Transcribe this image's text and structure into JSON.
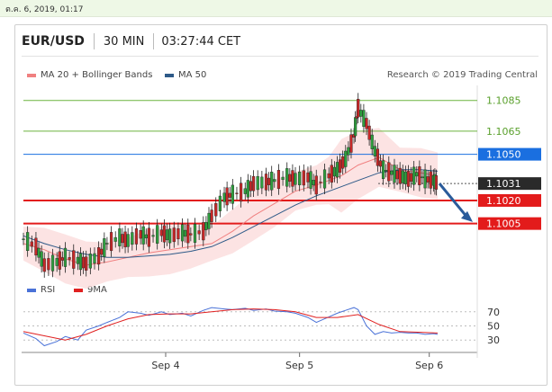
{
  "timestamp": "ต.ค. 6, 2019, 01:17",
  "header": {
    "symbol": "EUR/USD",
    "timeframe": "30 MIN",
    "time": "03:27:44 CET"
  },
  "legend": {
    "ma20": {
      "label": "MA 20 + Bollinger Bands",
      "color": "#f08080"
    },
    "ma50": {
      "label": "MA 50",
      "color": "#2e5a88"
    }
  },
  "research": "Research © 2019 Trading Central",
  "rsi_legend": {
    "rsi": {
      "label": "RSI",
      "color": "#4a72d8"
    },
    "ma9": {
      "label": "9MA",
      "color": "#e02020"
    }
  },
  "chart_data": [
    {
      "type": "line",
      "title": "",
      "x_ticks": [
        "Sep 4",
        "Sep 5",
        "Sep 6"
      ],
      "ylim": [
        1.0975,
        1.1093
      ],
      "levels": [
        {
          "value": 1.1085,
          "label": "1.1085",
          "kind": "resistance",
          "color": "#6cb33f"
        },
        {
          "value": 1.1065,
          "label": "1.1065",
          "kind": "resistance",
          "color": "#6cb33f"
        },
        {
          "value": 1.105,
          "label": "1.1050",
          "kind": "pivot",
          "color": "#1a6fe0"
        },
        {
          "value": 1.1031,
          "label": "1.1031",
          "kind": "last",
          "color": "#2a2a2a"
        },
        {
          "value": 1.102,
          "label": "1.1020",
          "kind": "support",
          "color": "#e31b1b"
        },
        {
          "value": 1.1005,
          "label": "1.1005",
          "kind": "support",
          "color": "#e31b1b"
        }
      ],
      "series": [
        {
          "name": "MA 20 + Bollinger Bands",
          "x": [
            0,
            5,
            10,
            15,
            20,
            25,
            30,
            35,
            40,
            45,
            50,
            55,
            60,
            65,
            70,
            73,
            76,
            80,
            85,
            90,
            95,
            99
          ],
          "values": [
            1.0992,
            1.0988,
            1.0982,
            1.0978,
            1.098,
            1.0983,
            1.0986,
            1.0988,
            1.099,
            1.0992,
            1.1,
            1.101,
            1.1018,
            1.1026,
            1.103,
            1.1033,
            1.1036,
            1.1043,
            1.1048,
            1.104,
            1.1038,
            1.1036
          ]
        },
        {
          "name": "MA 50",
          "x": [
            0,
            5,
            10,
            15,
            20,
            25,
            30,
            35,
            40,
            45,
            50,
            55,
            60,
            65,
            70,
            75,
            80,
            85,
            90,
            95,
            99
          ],
          "values": [
            1.0997,
            1.0992,
            1.0988,
            1.0985,
            1.0983,
            1.0983,
            1.0984,
            1.0985,
            1.0987,
            1.099,
            1.0996,
            1.1003,
            1.101,
            1.1017,
            1.1023,
            1.1028,
            1.1033,
            1.1038,
            1.104,
            1.104,
            1.1039
          ]
        },
        {
          "name": "EUR/USD",
          "x": [
            0,
            3,
            5,
            8,
            10,
            13,
            15,
            18,
            20,
            23,
            25,
            28,
            30,
            33,
            35,
            38,
            40,
            43,
            45,
            48,
            50,
            53,
            55,
            58,
            60,
            63,
            65,
            68,
            70,
            73,
            75,
            77,
            79,
            80,
            82,
            84,
            86,
            88,
            90,
            92,
            94,
            96,
            98,
            99
          ],
          "values": [
            1.0995,
            1.099,
            1.0978,
            1.098,
            1.0983,
            1.0981,
            1.0979,
            1.0984,
            1.0992,
            1.0996,
            1.0994,
            1.0998,
            1.0996,
            1.0999,
            1.0997,
            1.0999,
            1.0998,
            1.1,
            1.101,
            1.1022,
            1.1024,
            1.1026,
            1.1031,
            1.1032,
            1.1033,
            1.1035,
            1.1034,
            1.1035,
            1.103,
            1.1036,
            1.104,
            1.1047,
            1.1062,
            1.108,
            1.107,
            1.1052,
            1.104,
            1.1038,
            1.1036,
            1.1034,
            1.1037,
            1.1034,
            1.1033,
            1.1031
          ]
        }
      ]
    },
    {
      "type": "line",
      "title": "",
      "x_ticks": [
        "Sep 4",
        "Sep 5",
        "Sep 6"
      ],
      "ylim": [
        15,
        85
      ],
      "y_ticks": [
        70,
        50,
        30
      ],
      "series": [
        {
          "name": "RSI",
          "x": [
            0,
            3,
            5,
            8,
            10,
            13,
            15,
            18,
            20,
            23,
            25,
            28,
            30,
            33,
            35,
            38,
            40,
            43,
            45,
            48,
            50,
            53,
            55,
            58,
            60,
            63,
            65,
            68,
            70,
            72,
            75,
            77,
            79,
            80,
            82,
            84,
            86,
            88,
            90,
            92,
            94,
            96,
            98,
            99
          ],
          "values": [
            40,
            32,
            22,
            28,
            35,
            30,
            44,
            50,
            55,
            62,
            70,
            68,
            65,
            70,
            66,
            68,
            64,
            72,
            76,
            74,
            73,
            75,
            72,
            74,
            71,
            70,
            68,
            62,
            55,
            60,
            68,
            72,
            76,
            73,
            50,
            38,
            42,
            40,
            41,
            40,
            40,
            38,
            39,
            38
          ]
        },
        {
          "name": "9MA",
          "x": [
            0,
            5,
            10,
            15,
            20,
            25,
            30,
            35,
            40,
            45,
            50,
            55,
            60,
            65,
            70,
            75,
            80,
            85,
            90,
            95,
            99
          ],
          "values": [
            42,
            36,
            30,
            38,
            50,
            60,
            66,
            67,
            67,
            70,
            73,
            74,
            73,
            70,
            62,
            62,
            66,
            52,
            42,
            41,
            40
          ]
        }
      ]
    }
  ]
}
